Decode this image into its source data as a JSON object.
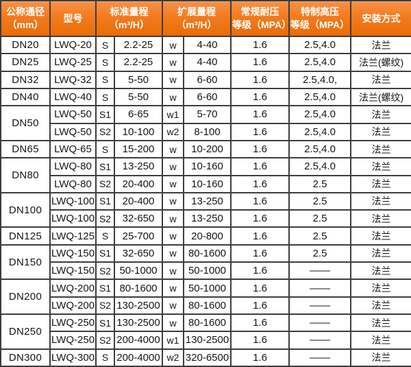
{
  "table": {
    "title_semantic": "LWQ gas turbine flowmeter specification table",
    "header": {
      "nominal_diameter": [
        "公称通径",
        "（mm）"
      ],
      "model": [
        "型号"
      ],
      "standard_range": [
        "标准量程",
        "（m³/H）"
      ],
      "extended_range": [
        "扩展量程",
        "（m³/H）"
      ],
      "normal_pressure": [
        "常规耐压",
        "等级（MPA）"
      ],
      "high_pressure": [
        "特制高压",
        "等级（MPA）"
      ],
      "installation": [
        "安装方式"
      ]
    },
    "rows": [
      {
        "dn": "DN20",
        "dn_rowspan": 1,
        "model": "LWQ-20",
        "std_code": "S",
        "std_range": "2.2-25",
        "ext_code": "w",
        "ext_range": "4-40",
        "normal_mpa": "1.6",
        "high_mpa": "2.5,4.0",
        "install": "法兰"
      },
      {
        "dn": "DN25",
        "dn_rowspan": 1,
        "model": "LWQ-25",
        "std_code": "S",
        "std_range": "2.2-25",
        "ext_code": "w",
        "ext_range": "4-40",
        "normal_mpa": "1.6",
        "high_mpa": "2.5,4.0",
        "install": "法兰(螺纹)"
      },
      {
        "dn": "DN32",
        "dn_rowspan": 1,
        "model": "LWQ-32",
        "std_code": "S",
        "std_range": "5-50",
        "ext_code": "w",
        "ext_range": "6-60",
        "normal_mpa": "1.6",
        "high_mpa": "2.5,4.0,",
        "install": "法兰"
      },
      {
        "dn": "DN40",
        "dn_rowspan": 1,
        "model": "LWQ-40",
        "std_code": "S",
        "std_range": "5-50",
        "ext_code": "w",
        "ext_range": "6-60",
        "normal_mpa": "1.6",
        "high_mpa": "2.5,4.0",
        "install": "法兰(螺纹)"
      },
      {
        "dn": "DN50",
        "dn_rowspan": 2,
        "model": "LWQ-50",
        "std_code": "S1",
        "std_range": "6-65",
        "ext_code": "w1",
        "ext_range": "5-70",
        "normal_mpa": "1.6",
        "high_mpa": "2.5,4.0",
        "install": "法兰"
      },
      {
        "dn": null,
        "dn_rowspan": 0,
        "model": "LWQ-50",
        "std_code": "S2",
        "std_range": "10-100",
        "ext_code": "w2",
        "ext_range": "8-100",
        "normal_mpa": "1.6",
        "high_mpa": "2.5,4.0",
        "install": "法兰"
      },
      {
        "dn": "DN65",
        "dn_rowspan": 1,
        "model": "LWQ-65",
        "std_code": "S",
        "std_range": "15-200",
        "ext_code": "w",
        "ext_range": "10-200",
        "normal_mpa": "1.6",
        "high_mpa": "2.5,4.0",
        "install": "法兰"
      },
      {
        "dn": "DN80",
        "dn_rowspan": 2,
        "model": "LWQ-80",
        "std_code": "S1",
        "std_range": "13-250",
        "ext_code": "w",
        "ext_range": "10-160",
        "normal_mpa": "1.6",
        "high_mpa": "2.5,4.0",
        "install": "法兰"
      },
      {
        "dn": null,
        "dn_rowspan": 0,
        "model": "LWQ-80",
        "std_code": "S2",
        "std_range": "20-400",
        "ext_code": "w",
        "ext_range": "10-160",
        "normal_mpa": "1.6",
        "high_mpa": "2.5",
        "install": "法兰"
      },
      {
        "dn": "DN100",
        "dn_rowspan": 2,
        "model": "LWQ-100",
        "std_code": "S1",
        "std_range": "20-400",
        "ext_code": "w",
        "ext_range": "13-250",
        "normal_mpa": "1.6",
        "high_mpa": "2.5",
        "install": "法兰"
      },
      {
        "dn": null,
        "dn_rowspan": 0,
        "model": "LWQ-100",
        "std_code": "S2",
        "std_range": "32-650",
        "ext_code": "w",
        "ext_range": "13-250",
        "normal_mpa": "1.6",
        "high_mpa": "2.5",
        "install": "法兰"
      },
      {
        "dn": "DN125",
        "dn_rowspan": 1,
        "model": "LWQ-125",
        "std_code": "S",
        "std_range": "25-700",
        "ext_code": "w",
        "ext_range": "20-800",
        "normal_mpa": "1.6",
        "high_mpa": "2.5",
        "install": "法兰"
      },
      {
        "dn": "DN150",
        "dn_rowspan": 2,
        "model": "LWQ-150",
        "std_code": "S1",
        "std_range": "32-650",
        "ext_code": "w",
        "ext_range": "80-1600",
        "normal_mpa": "1.6",
        "high_mpa": "2.5",
        "install": "法兰"
      },
      {
        "dn": null,
        "dn_rowspan": 0,
        "model": "LWQ-150",
        "std_code": "S2",
        "std_range": "50-1000",
        "ext_code": "w",
        "ext_range": "50-1000",
        "normal_mpa": "1.6",
        "high_mpa": "——",
        "install": "法兰"
      },
      {
        "dn": "DN200",
        "dn_rowspan": 2,
        "model": "LWQ-200",
        "std_code": "S1",
        "std_range": "80-1600",
        "ext_code": "w",
        "ext_range": "50-1000",
        "normal_mpa": "1.6",
        "high_mpa": "——",
        "install": "法兰"
      },
      {
        "dn": null,
        "dn_rowspan": 0,
        "model": "LWQ-200",
        "std_code": "S2",
        "std_range": "130-2500",
        "ext_code": "w",
        "ext_range": "80-1600",
        "normal_mpa": "1.6",
        "high_mpa": "——",
        "install": "法兰"
      },
      {
        "dn": "DN250",
        "dn_rowspan": 2,
        "model": "LWQ-250",
        "std_code": "S1",
        "std_range": "130-2500",
        "ext_code": "w",
        "ext_range": "80-1600",
        "normal_mpa": "1.6",
        "high_mpa": "——",
        "install": "法兰"
      },
      {
        "dn": null,
        "dn_rowspan": 0,
        "model": "LWQ-250",
        "std_code": "S2",
        "std_range": "200-4000",
        "ext_code": "w1",
        "ext_range": "130-2500",
        "normal_mpa": "1.6",
        "high_mpa": "——",
        "install": "法兰"
      },
      {
        "dn": "DN300",
        "dn_rowspan": 1,
        "model": "LWQ-300",
        "std_code": "S",
        "std_range": "200-4000",
        "ext_code": "w2",
        "ext_range": "320-6500",
        "normal_mpa": "1.6",
        "high_mpa": "——",
        "install": "法兰"
      }
    ]
  },
  "colors": {
    "header_orange_top": "#f8914a",
    "header_orange_bottom": "#e96c08",
    "header_text": "#ffffff",
    "body_text": "#141414",
    "grid_border": "#3d3d3d",
    "header_border": "#4a3a28"
  }
}
